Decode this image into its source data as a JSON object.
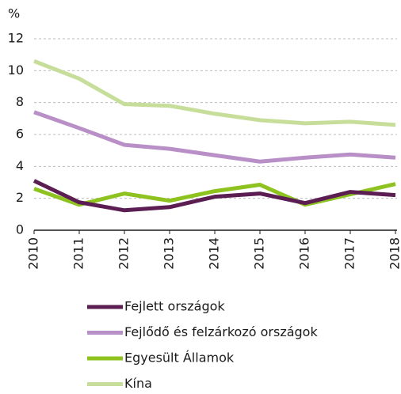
{
  "chart_data": {
    "type": "line",
    "y_unit": "%",
    "categories": [
      "2010",
      "2011",
      "2012",
      "2013",
      "2014",
      "2015",
      "2016",
      "2017",
      "2018"
    ],
    "series": [
      {
        "name": "Fejlett országok",
        "color": "#5b1d52",
        "values": [
          3.1,
          1.75,
          1.25,
          1.45,
          2.1,
          2.3,
          1.7,
          2.4,
          2.2
        ]
      },
      {
        "name": "Fejlődő és felzárkozó országok",
        "color": "#b88fc6",
        "values": [
          7.4,
          6.4,
          5.35,
          5.1,
          4.7,
          4.3,
          4.55,
          4.75,
          4.55
        ]
      },
      {
        "name": "Egyesült Államok",
        "color": "#8dc21f",
        "values": [
          2.6,
          1.6,
          2.3,
          1.85,
          2.45,
          2.85,
          1.6,
          2.25,
          2.9
        ]
      },
      {
        "name": "Kína",
        "color": "#c7de9b",
        "values": [
          10.6,
          9.5,
          7.9,
          7.8,
          7.3,
          6.9,
          6.7,
          6.8,
          6.6
        ]
      }
    ],
    "ylim": [
      0,
      12
    ],
    "yticks": [
      0,
      2,
      4,
      6,
      8,
      10,
      12
    ],
    "grid": true
  }
}
